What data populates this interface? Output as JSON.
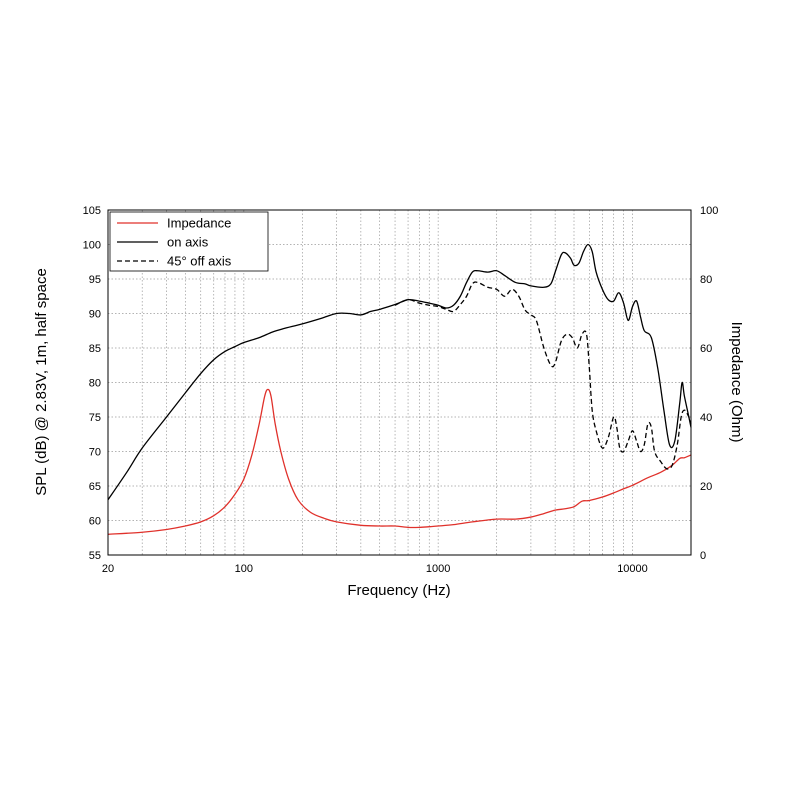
{
  "chart_data": {
    "type": "line",
    "xlabel": "Frequency (Hz)",
    "ylabel": "SPL (dB) @ 2.83V, 1m, half space",
    "y2label": "Impedance (Ohm)",
    "xscale": "log",
    "xlim": [
      20,
      20000
    ],
    "ylim": [
      55,
      105
    ],
    "y2lim": [
      0,
      100
    ],
    "grid": true,
    "legend_position": "top-left",
    "x_ticks": [
      {
        "value": 20,
        "label": "20"
      },
      {
        "value": 100,
        "label": "100"
      },
      {
        "value": 1000,
        "label": "1000"
      },
      {
        "value": 10000,
        "label": "10000"
      }
    ],
    "y_ticks": [
      {
        "value": 55,
        "label": "55"
      },
      {
        "value": 60,
        "label": "60"
      },
      {
        "value": 65,
        "label": "65"
      },
      {
        "value": 70,
        "label": "70"
      },
      {
        "value": 75,
        "label": "75"
      },
      {
        "value": 80,
        "label": "80"
      },
      {
        "value": 85,
        "label": "85"
      },
      {
        "value": 90,
        "label": "90"
      },
      {
        "value": 95,
        "label": "95"
      },
      {
        "value": 100,
        "label": "100"
      },
      {
        "value": 105,
        "label": "105"
      }
    ],
    "y2_ticks": [
      {
        "value": 0,
        "label": "0"
      },
      {
        "value": 20,
        "label": "20"
      },
      {
        "value": 40,
        "label": "40"
      },
      {
        "value": 60,
        "label": "60"
      },
      {
        "value": 80,
        "label": "80"
      },
      {
        "value": 100,
        "label": "100"
      }
    ],
    "series": [
      {
        "name": "Impedance",
        "axis": "right",
        "color": "#e0312b",
        "style": "solid",
        "points": [
          [
            20,
            6
          ],
          [
            30,
            6.6
          ],
          [
            40,
            7.4
          ],
          [
            50,
            8.4
          ],
          [
            60,
            9.6
          ],
          [
            70,
            11.4
          ],
          [
            80,
            14
          ],
          [
            90,
            17.6
          ],
          [
            100,
            22
          ],
          [
            110,
            29
          ],
          [
            120,
            38
          ],
          [
            128,
            46
          ],
          [
            133,
            48
          ],
          [
            138,
            46
          ],
          [
            145,
            38
          ],
          [
            155,
            30
          ],
          [
            170,
            22
          ],
          [
            190,
            16
          ],
          [
            220,
            12.4
          ],
          [
            260,
            10.6
          ],
          [
            300,
            9.6
          ],
          [
            400,
            8.6
          ],
          [
            500,
            8.4
          ],
          [
            600,
            8.4
          ],
          [
            700,
            8
          ],
          [
            800,
            8
          ],
          [
            900,
            8.2
          ],
          [
            1000,
            8.4
          ],
          [
            1200,
            8.8
          ],
          [
            1500,
            9.6
          ],
          [
            2000,
            10.4
          ],
          [
            2500,
            10.4
          ],
          [
            3000,
            11
          ],
          [
            3500,
            12
          ],
          [
            4000,
            13
          ],
          [
            4500,
            13.4
          ],
          [
            5000,
            14
          ],
          [
            5500,
            15.6
          ],
          [
            6000,
            15.8
          ],
          [
            7000,
            16.8
          ],
          [
            8000,
            18
          ],
          [
            9000,
            19.2
          ],
          [
            10000,
            20.2
          ],
          [
            12000,
            22.4
          ],
          [
            14000,
            24
          ],
          [
            16000,
            26
          ],
          [
            17500,
            28
          ],
          [
            18500,
            28.2
          ],
          [
            20000,
            29
          ]
        ]
      },
      {
        "name": "on axis",
        "axis": "left",
        "color": "#000000",
        "style": "solid",
        "points": [
          [
            20,
            63
          ],
          [
            25,
            67
          ],
          [
            30,
            70.5
          ],
          [
            40,
            75
          ],
          [
            50,
            78.5
          ],
          [
            60,
            81.3
          ],
          [
            70,
            83.3
          ],
          [
            80,
            84.5
          ],
          [
            90,
            85.2
          ],
          [
            100,
            85.8
          ],
          [
            120,
            86.5
          ],
          [
            140,
            87.3
          ],
          [
            160,
            87.8
          ],
          [
            200,
            88.5
          ],
          [
            250,
            89.3
          ],
          [
            300,
            90
          ],
          [
            350,
            90
          ],
          [
            400,
            89.8
          ],
          [
            450,
            90.3
          ],
          [
            500,
            90.6
          ],
          [
            600,
            91.3
          ],
          [
            700,
            92
          ],
          [
            800,
            91.8
          ],
          [
            900,
            91.5
          ],
          [
            1000,
            91.2
          ],
          [
            1100,
            90.8
          ],
          [
            1200,
            91.2
          ],
          [
            1300,
            92.5
          ],
          [
            1400,
            94.5
          ],
          [
            1500,
            96
          ],
          [
            1600,
            96.2
          ],
          [
            1800,
            96
          ],
          [
            2000,
            96.2
          ],
          [
            2200,
            95.5
          ],
          [
            2500,
            94.5
          ],
          [
            2800,
            94.3
          ],
          [
            3000,
            94
          ],
          [
            3500,
            93.8
          ],
          [
            3800,
            94.3
          ],
          [
            4000,
            96
          ],
          [
            4300,
            98.5
          ],
          [
            4500,
            98.8
          ],
          [
            4800,
            98
          ],
          [
            5000,
            97
          ],
          [
            5300,
            97.3
          ],
          [
            5600,
            99
          ],
          [
            5900,
            100
          ],
          [
            6200,
            99
          ],
          [
            6500,
            96
          ],
          [
            7000,
            93.5
          ],
          [
            7500,
            92
          ],
          [
            8000,
            91.8
          ],
          [
            8500,
            93
          ],
          [
            9000,
            91.5
          ],
          [
            9500,
            89
          ],
          [
            10000,
            91
          ],
          [
            10500,
            91.8
          ],
          [
            11000,
            89.5
          ],
          [
            11500,
            87.5
          ],
          [
            12500,
            86.5
          ],
          [
            13500,
            82
          ],
          [
            14500,
            76
          ],
          [
            15500,
            71
          ],
          [
            16500,
            71.5
          ],
          [
            17500,
            77
          ],
          [
            18000,
            80
          ],
          [
            18500,
            78
          ],
          [
            19500,
            75
          ],
          [
            20000,
            73.5
          ]
        ]
      },
      {
        "name": "45° off axis",
        "axis": "left",
        "color": "#000000",
        "style": "dashed",
        "points": [
          [
            600,
            91.2
          ],
          [
            700,
            92
          ],
          [
            800,
            91.5
          ],
          [
            900,
            91.2
          ],
          [
            1000,
            91
          ],
          [
            1100,
            90.6
          ],
          [
            1200,
            90.3
          ],
          [
            1300,
            91.3
          ],
          [
            1400,
            92.5
          ],
          [
            1500,
            94.3
          ],
          [
            1600,
            94.5
          ],
          [
            1800,
            93.8
          ],
          [
            2000,
            93.5
          ],
          [
            2200,
            92.5
          ],
          [
            2400,
            93.5
          ],
          [
            2600,
            92.5
          ],
          [
            2800,
            90.5
          ],
          [
            3000,
            89.8
          ],
          [
            3200,
            89
          ],
          [
            3500,
            85
          ],
          [
            3800,
            82.5
          ],
          [
            4000,
            82.8
          ],
          [
            4300,
            86
          ],
          [
            4600,
            87
          ],
          [
            4900,
            86.5
          ],
          [
            5200,
            85
          ],
          [
            5500,
            87
          ],
          [
            5800,
            87
          ],
          [
            6000,
            82
          ],
          [
            6200,
            76
          ],
          [
            6500,
            73
          ],
          [
            7000,
            70.5
          ],
          [
            7500,
            72
          ],
          [
            8000,
            75
          ],
          [
            8300,
            73.5
          ],
          [
            8600,
            70.5
          ],
          [
            9000,
            70
          ],
          [
            9500,
            71.5
          ],
          [
            10000,
            73
          ],
          [
            10500,
            71.5
          ],
          [
            11000,
            70
          ],
          [
            11500,
            71
          ],
          [
            12000,
            74
          ],
          [
            12500,
            73.5
          ],
          [
            13000,
            70
          ],
          [
            14000,
            68.5
          ],
          [
            15000,
            67.5
          ],
          [
            16000,
            68
          ],
          [
            17000,
            71
          ],
          [
            17800,
            75
          ],
          [
            18500,
            76
          ],
          [
            19500,
            75
          ],
          [
            20000,
            74
          ]
        ]
      }
    ]
  }
}
